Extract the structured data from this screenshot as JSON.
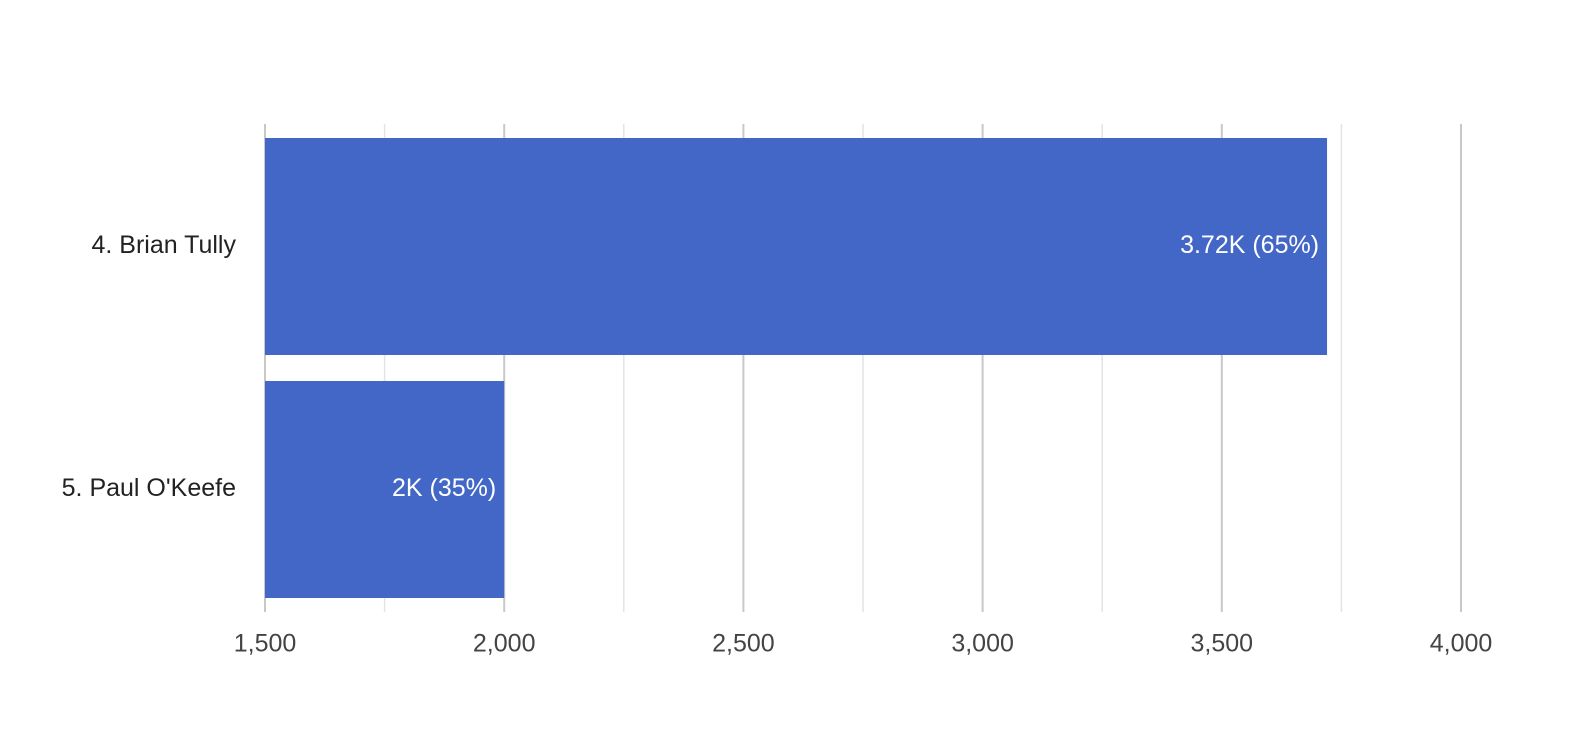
{
  "chart_data": {
    "type": "barh",
    "categories": [
      "4. Brian Tully",
      "5. Paul O'Keefe"
    ],
    "values": [
      3720,
      2000
    ],
    "value_labels": [
      "3.72K (65%)",
      "2K (35%)"
    ],
    "color": "#4267c6",
    "xlim": [
      1500,
      4000
    ],
    "xticks": [
      {
        "value": 1500,
        "label": "1,500"
      },
      {
        "value": 2000,
        "label": "2,000"
      },
      {
        "value": 2500,
        "label": "2,500"
      },
      {
        "value": 3000,
        "label": "3,000"
      },
      {
        "value": 3500,
        "label": "3,500"
      },
      {
        "value": 4000,
        "label": "4,000"
      }
    ],
    "minor_xticks": [
      1750,
      2250,
      2750,
      3250,
      3750
    ],
    "grid": true
  }
}
